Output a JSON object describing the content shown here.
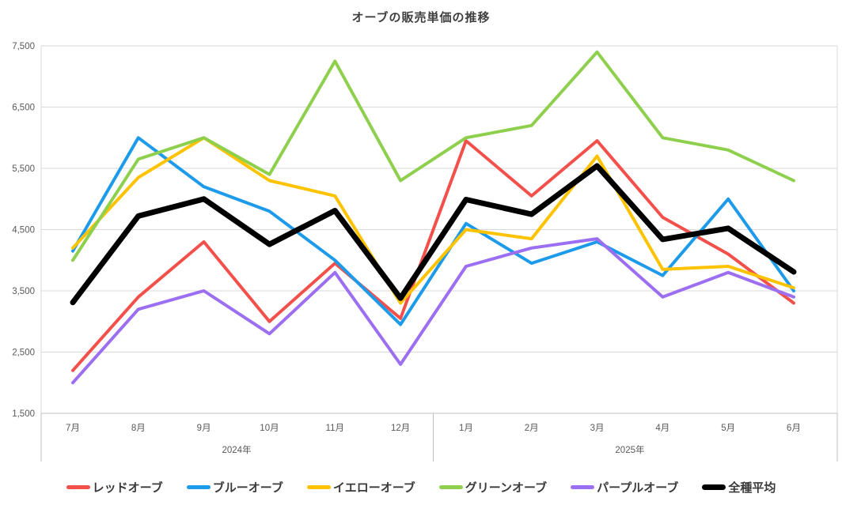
{
  "title": "オーブの販売単価の推移",
  "chart_data": {
    "type": "line",
    "title": "オーブの販売単価の推移",
    "x_categories": [
      "7月",
      "8月",
      "9月",
      "10月",
      "11月",
      "12月",
      "1月",
      "2月",
      "3月",
      "4月",
      "5月",
      "6月"
    ],
    "x_groups": [
      {
        "label": "2024年",
        "span": 6
      },
      {
        "label": "2025年",
        "span": 6
      }
    ],
    "ylim": [
      1500,
      7500
    ],
    "y_step": 1000,
    "y_tick_labels": [
      "1,500",
      "2,500",
      "3,500",
      "4,500",
      "5,500",
      "6,500",
      "7,500"
    ],
    "grid": true,
    "legend_position": "bottom",
    "series": [
      {
        "name": "レッドオーブ",
        "color": "#F4504B",
        "width": 4,
        "values": [
          2200,
          3400,
          4300,
          3000,
          3950,
          3050,
          5950,
          5050,
          5950,
          4700,
          4100,
          3300
        ]
      },
      {
        "name": "ブルーオーブ",
        "color": "#1D9BEA",
        "width": 4,
        "values": [
          4150,
          6000,
          5200,
          4800,
          4000,
          2950,
          4600,
          3950,
          4300,
          3750,
          5000,
          3500
        ]
      },
      {
        "name": "イエローオーブ",
        "color": "#FDC300",
        "width": 4,
        "values": [
          4200,
          5350,
          6000,
          5300,
          5050,
          3300,
          4500,
          4350,
          5700,
          3850,
          3900,
          3550
        ]
      },
      {
        "name": "グリーンオーブ",
        "color": "#8ED04E",
        "width": 4,
        "values": [
          4000,
          5650,
          6000,
          5400,
          7250,
          5300,
          6000,
          6200,
          7400,
          6000,
          5800,
          5300
        ]
      },
      {
        "name": "パープルオーブ",
        "color": "#9C6FF2",
        "width": 4,
        "values": [
          2000,
          3200,
          3500,
          2800,
          3800,
          2300,
          3900,
          4200,
          4350,
          3400,
          3800,
          3400
        ]
      },
      {
        "name": "全種平均",
        "color": "#000000",
        "width": 7,
        "values": [
          3310,
          4720,
          5000,
          4260,
          4810,
          3380,
          4990,
          4750,
          5540,
          4340,
          4520,
          3810
        ]
      }
    ]
  },
  "colors": {
    "grid_line": "#D9D9D9",
    "axis_line": "#BFBFBF",
    "tick_text": "#595959",
    "title_text": "#3F3F3F",
    "background": "#FFFFFF"
  }
}
